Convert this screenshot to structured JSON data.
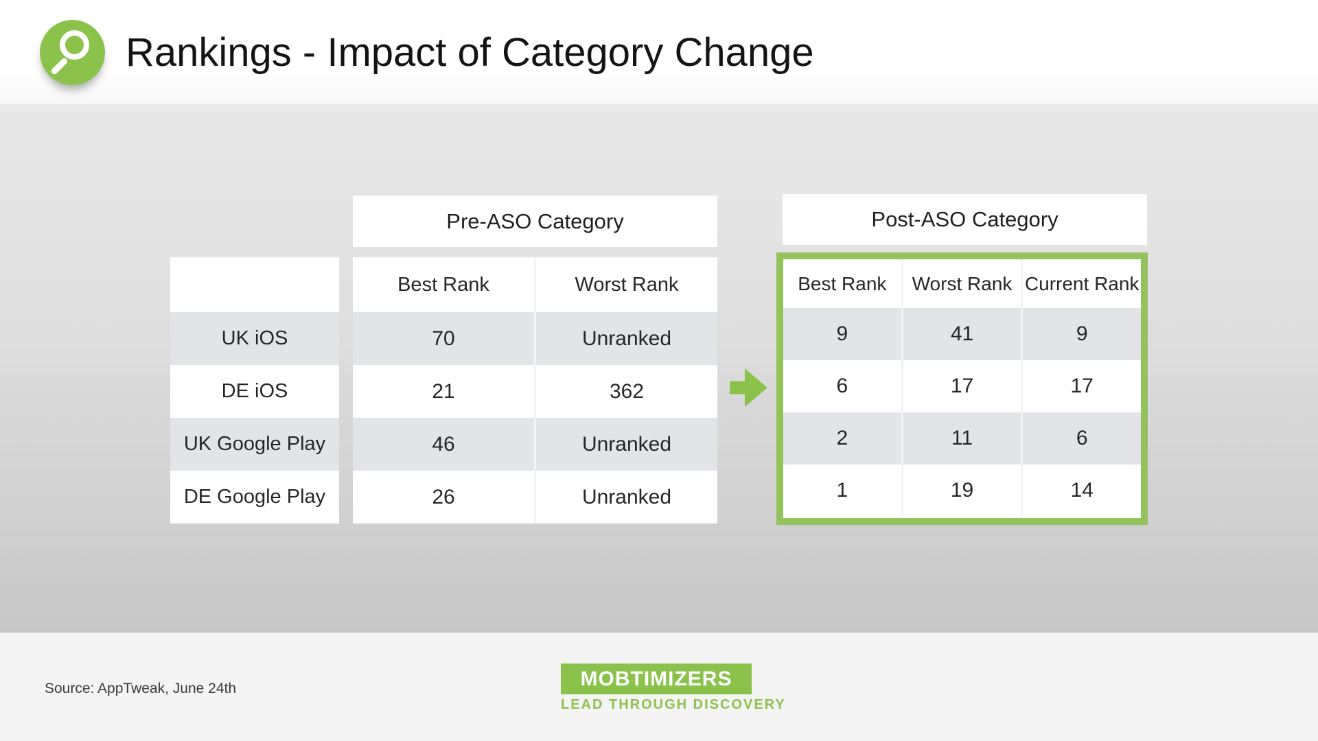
{
  "header": {
    "title": "Rankings - Impact of Category Change",
    "icon": "magnifier-icon"
  },
  "pre_table": {
    "title": "Pre-ASO Category",
    "columns": [
      "Best Rank",
      "Worst Rank"
    ],
    "row_labels": [
      "UK iOS",
      "DE iOS",
      "UK Google Play",
      "DE Google Play"
    ],
    "rows": [
      [
        "70",
        "Unranked"
      ],
      [
        "21",
        "362"
      ],
      [
        "46",
        "Unranked"
      ],
      [
        "26",
        "Unranked"
      ]
    ]
  },
  "post_table": {
    "title": "Post-ASO Category",
    "columns": [
      "Best Rank",
      "Worst Rank",
      "Current Rank"
    ],
    "rows": [
      [
        "9",
        "41",
        "9"
      ],
      [
        "6",
        "17",
        "17"
      ],
      [
        "2",
        "11",
        "6"
      ],
      [
        "1",
        "19",
        "14"
      ]
    ]
  },
  "footer": {
    "source": "Source: AppTweak, June 24th",
    "logo_text": "MOBTIMIZERS",
    "logo_tagline": "LEAD THROUGH DISCOVERY"
  },
  "colors": {
    "green": "#8bc24c",
    "border_green": "#94c25c",
    "row_gray": "#e2e4e7",
    "stage_top": "#e9e9e9",
    "stage_bottom": "#c7c7c7",
    "footer_bg": "#f4f4f4"
  },
  "chart_data": [
    {
      "type": "table",
      "title": "Pre-ASO Category",
      "columns": [
        "",
        "Best Rank",
        "Worst Rank"
      ],
      "rows": [
        [
          "UK iOS",
          "70",
          "Unranked"
        ],
        [
          "DE iOS",
          "21",
          "362"
        ],
        [
          "UK Google Play",
          "46",
          "Unranked"
        ],
        [
          "DE Google Play",
          "26",
          "Unranked"
        ]
      ]
    },
    {
      "type": "table",
      "title": "Post-ASO Category",
      "columns": [
        "Best Rank",
        "Worst Rank",
        "Current Rank"
      ],
      "rows": [
        [
          "9",
          "41",
          "9"
        ],
        [
          "6",
          "17",
          "17"
        ],
        [
          "2",
          "11",
          "6"
        ],
        [
          "1",
          "19",
          "14"
        ]
      ]
    }
  ]
}
